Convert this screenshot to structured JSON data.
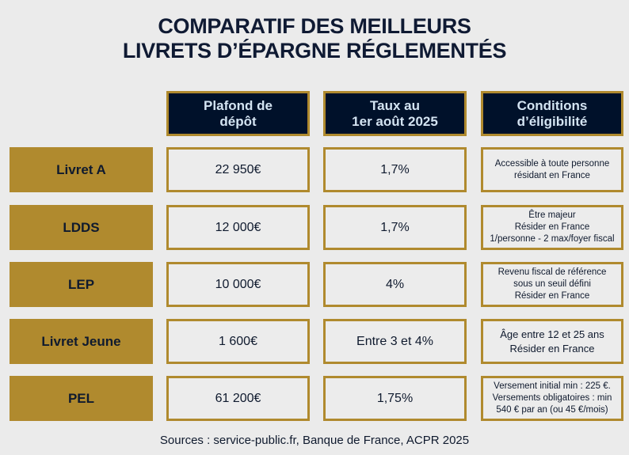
{
  "title": [
    "COMPARATIF DES MEILLEURS",
    "LIVRETS D’ÉPARGNE RÉGLEMENTÉS"
  ],
  "headers": [
    [
      "Plafond de",
      "dépôt"
    ],
    [
      "Taux au",
      "1er août 2025"
    ],
    [
      "Conditions",
      "d’éligibilité"
    ]
  ],
  "rows": [
    {
      "name": "Livret A",
      "plafond": "22 950€",
      "taux": "1,7%",
      "conditions": [
        "Accessible à toute personne",
        "résidant en France"
      ]
    },
    {
      "name": "LDDS",
      "plafond": "12 000€",
      "taux": "1,7%",
      "conditions": [
        "Être majeur",
        "Résider en France",
        "1/personne - 2 max/foyer fiscal"
      ]
    },
    {
      "name": "LEP",
      "plafond": "10 000€",
      "taux": "4%",
      "conditions": [
        "Revenu fiscal de référence",
        "sous un seuil défini",
        "Résider en France"
      ]
    },
    {
      "name": "Livret Jeune",
      "plafond": "1 600€",
      "taux": "Entre 3 et 4%",
      "conditions": [
        "Âge entre 12 et 25 ans",
        "Résider en France"
      ]
    },
    {
      "name": "PEL",
      "plafond": "61 200€",
      "taux": "1,75%",
      "conditions": [
        "Versement initial min : 225 €.",
        "Versements obligatoires : min",
        "540 € par an (ou 45 €/mois)"
      ]
    }
  ],
  "sources": "Sources : service-public.fr, Banque de France, ACPR 2025",
  "colors": {
    "gold": "#b08a2e",
    "navy": "#00112a",
    "background": "#ebebeb"
  }
}
